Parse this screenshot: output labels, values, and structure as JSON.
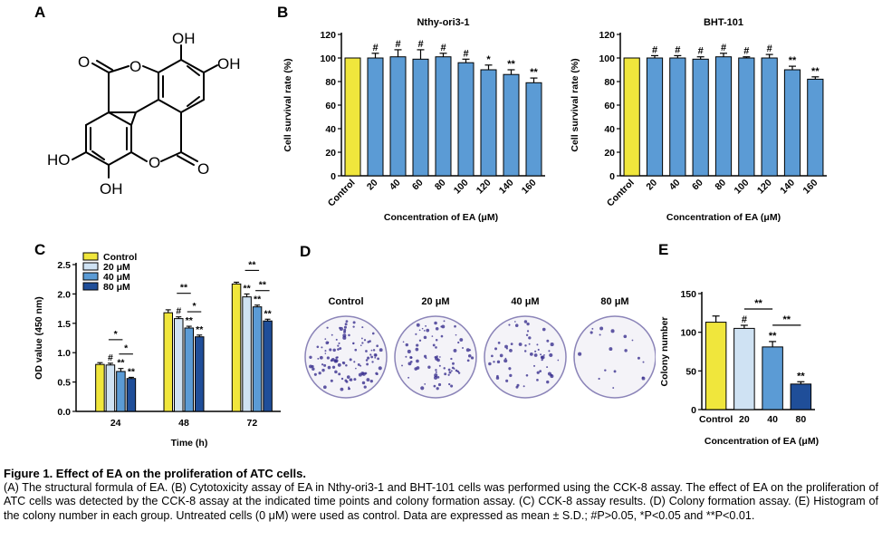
{
  "panel_labels": {
    "a": "A",
    "b": "B",
    "c": "C",
    "d": "D",
    "e": "E"
  },
  "structure": {
    "labels": [
      "OH",
      "OH",
      "HO",
      "OH"
    ],
    "atoms": [
      "O",
      "O",
      "O",
      "O"
    ]
  },
  "chart_data": [
    {
      "type": "bar",
      "title": "Nthy-ori3-1",
      "categories": [
        "Control",
        "20",
        "40",
        "60",
        "80",
        "100",
        "120",
        "140",
        "160"
      ],
      "values": [
        100,
        100,
        101,
        99,
        101,
        96,
        90,
        86,
        79
      ],
      "errors": [
        0,
        4,
        6,
        8,
        3,
        3,
        4,
        4,
        4
      ],
      "significance": [
        "",
        "#",
        "#",
        "#",
        "#",
        "#",
        "*",
        "**",
        "**"
      ],
      "colors": [
        "#f0e63c",
        "#5b9bd5",
        "#5b9bd5",
        "#5b9bd5",
        "#5b9bd5",
        "#5b9bd5",
        "#5b9bd5",
        "#5b9bd5",
        "#5b9bd5"
      ],
      "xlabel": "Concentration of EA (μM)",
      "ylabel": "Cell survival rate (%)",
      "ylim": [
        0,
        120
      ],
      "yticks": [
        "0",
        "20",
        "40",
        "60",
        "80",
        "100",
        "120"
      ]
    },
    {
      "type": "bar",
      "title": "BHT-101",
      "categories": [
        "Control",
        "20",
        "40",
        "60",
        "80",
        "100",
        "120",
        "140",
        "160"
      ],
      "values": [
        100,
        100,
        100,
        99,
        101,
        100,
        100,
        90,
        82
      ],
      "errors": [
        0,
        2,
        2,
        2,
        3,
        1,
        3,
        3,
        2
      ],
      "significance": [
        "",
        "#",
        "#",
        "#",
        "#",
        "#",
        "#",
        "**",
        "**"
      ],
      "colors": [
        "#f0e63c",
        "#5b9bd5",
        "#5b9bd5",
        "#5b9bd5",
        "#5b9bd5",
        "#5b9bd5",
        "#5b9bd5",
        "#5b9bd5",
        "#5b9bd5"
      ],
      "xlabel": "Concentration of EA (μM)",
      "ylabel": "Cell survival rate (%)",
      "ylim": [
        0,
        120
      ],
      "yticks": [
        "0",
        "20",
        "40",
        "60",
        "80",
        "100",
        "120"
      ]
    },
    {
      "type": "bar",
      "categories": [
        "24",
        "48",
        "72"
      ],
      "series": [
        {
          "name": "Control",
          "values": [
            0.8,
            1.68,
            2.17
          ],
          "errors": [
            0.03,
            0.05,
            0.03
          ],
          "significance": [
            "",
            "",
            ""
          ]
        },
        {
          "name": "20 μM",
          "values": [
            0.79,
            1.58,
            1.95
          ],
          "errors": [
            0.03,
            0.03,
            0.05
          ],
          "significance": [
            "#",
            "#",
            "**"
          ]
        },
        {
          "name": "40 μM",
          "values": [
            0.68,
            1.42,
            1.78
          ],
          "errors": [
            0.05,
            0.03,
            0.03
          ],
          "significance": [
            "**",
            "**",
            "**"
          ]
        },
        {
          "name": "80 μM",
          "values": [
            0.56,
            1.27,
            1.54
          ],
          "errors": [
            0.02,
            0.03,
            0.03
          ],
          "significance": [
            "**",
            "**",
            "**"
          ]
        }
      ],
      "brackets": [
        {
          "group": 0,
          "from": 1,
          "to": 2,
          "label": "*"
        },
        {
          "group": 0,
          "from": 2,
          "to": 3,
          "label": "*"
        },
        {
          "group": 1,
          "from": 1,
          "to": 2,
          "label": "**"
        },
        {
          "group": 1,
          "from": 2,
          "to": 3,
          "label": "*"
        },
        {
          "group": 2,
          "from": 1,
          "to": 2,
          "label": "**"
        },
        {
          "group": 2,
          "from": 2,
          "to": 3,
          "label": "**"
        }
      ],
      "colors": [
        "#f0e63c",
        "#cfe2f3",
        "#5b9bd5",
        "#1f4e99"
      ],
      "xlabel": "Time (h)",
      "ylabel": "OD value (450 nm)",
      "ylim": [
        0,
        2.5
      ],
      "yticks": [
        "0.0",
        "0.5",
        "1.0",
        "1.5",
        "2.0",
        "2.5"
      ],
      "legend": "top-left"
    },
    {
      "type": "bar",
      "categories": [
        "Control",
        "20",
        "40",
        "80"
      ],
      "values": [
        113,
        105,
        81,
        33
      ],
      "errors": [
        8,
        4,
        7,
        3
      ],
      "significance": [
        "",
        "#",
        "**",
        "**"
      ],
      "brackets": [
        {
          "from": 1,
          "to": 2,
          "label": "**"
        },
        {
          "from": 2,
          "to": 3,
          "label": "**"
        }
      ],
      "colors": [
        "#f0e63c",
        "#cfe2f3",
        "#5b9bd5",
        "#1f4e99"
      ],
      "xlabel": "Concentration of EA (μM)",
      "ylabel": "Colony number",
      "ylim": [
        0,
        150
      ],
      "yticks": [
        "0",
        "50",
        "100",
        "150"
      ]
    }
  ],
  "colony_dishes": [
    "Control",
    "20 μM",
    "40 μM",
    "80 μM"
  ],
  "caption": {
    "title": "Figure 1. Effect of EA on the proliferation of ATC cells.",
    "body": "(A) The structural formula of EA. (B) Cytotoxicity assay of EA in Nthy-ori3-1 and BHT-101 cells was performed using the CCK-8 assay. The effect of EA on the proliferation of ATC cells was detected by the CCK-8 assay at the indicated time points and colony formation assay. (C) CCK-8 assay results. (D) Colony formation assay. (E) Histogram of the colony number in each group. Untreated cells (0 μM) were used as control. Data are expressed as mean ± S.D.; #P>0.05, *P<0.05 and **P<0.01."
  }
}
